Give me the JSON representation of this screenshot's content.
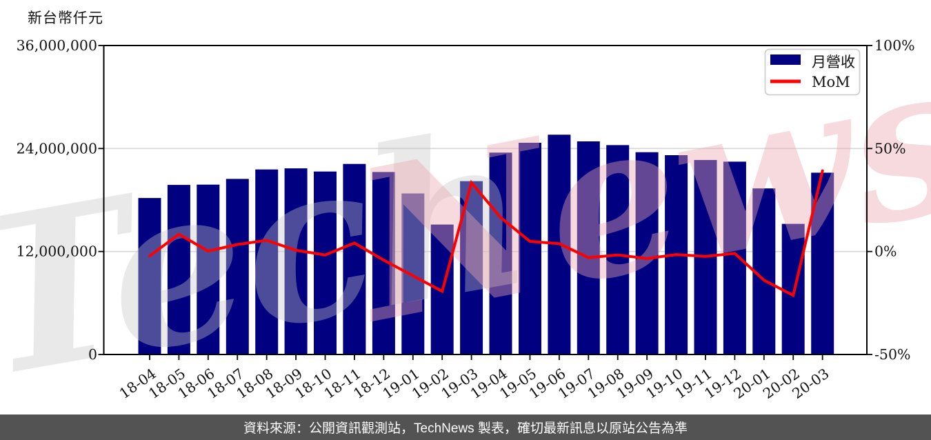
{
  "chart": {
    "unit_label": "新台幣仟元"
  },
  "chart_data": {
    "type": "bar",
    "title": "",
    "categories": [
      "18-04",
      "18-05",
      "18-06",
      "18-07",
      "18-08",
      "18-09",
      "18-10",
      "18-11",
      "18-12",
      "19-01",
      "19-02",
      "19-03",
      "19-04",
      "19-05",
      "19-06",
      "19-07",
      "19-08",
      "19-09",
      "19-10",
      "19-11",
      "19-12",
      "20-01",
      "20-02",
      "20-03"
    ],
    "series": [
      {
        "name": "月營收",
        "type": "bar",
        "color": "#000080",
        "values": [
          18230000,
          19760000,
          19790000,
          20460000,
          21560000,
          21690000,
          21320000,
          22200000,
          21260000,
          18760000,
          15140000,
          20190000,
          23520000,
          24670000,
          25610000,
          24830000,
          24400000,
          23570000,
          23220000,
          22660000,
          22470000,
          19350000,
          15220000,
          21180000
        ]
      },
      {
        "name": "MoM",
        "type": "line",
        "color": "#ff0000",
        "values": [
          -2.2,
          8.4,
          0.2,
          3.4,
          5.4,
          0.6,
          -1.7,
          4.1,
          -4.2,
          -11.8,
          -19.3,
          33.4,
          16.5,
          4.9,
          3.8,
          -3.0,
          -1.7,
          -3.4,
          -1.5,
          -2.4,
          -0.9,
          -13.9,
          -21.3,
          39.2
        ]
      }
    ],
    "y_left": {
      "label": "新台幣仟元",
      "min": 0,
      "max": 36000000,
      "ticks": [
        {
          "v": 0,
          "label": "0"
        },
        {
          "v": 12000000,
          "label": "12,000,000"
        },
        {
          "v": 24000000,
          "label": "24,000,000"
        },
        {
          "v": 36000000,
          "label": "36,000,000"
        }
      ]
    },
    "y_right": {
      "label": "",
      "min": -50,
      "max": 100,
      "ticks": [
        {
          "v": -50,
          "label": "-50%"
        },
        {
          "v": 0,
          "label": "0%"
        },
        {
          "v": 50,
          "label": "50%"
        },
        {
          "v": 100,
          "label": "100%"
        }
      ]
    },
    "grid": true,
    "legend_position": "top-right",
    "legend": [
      "月營收",
      "MoM"
    ],
    "watermark": [
      {
        "text": "Tech",
        "color": "#c8c8c8"
      },
      {
        "text": "News",
        "color": "#eda8b0"
      }
    ]
  },
  "footer": {
    "text": "資料來源：公開資訊觀測站，TechNews 製表，確切最新訊息以原站公告為準"
  }
}
